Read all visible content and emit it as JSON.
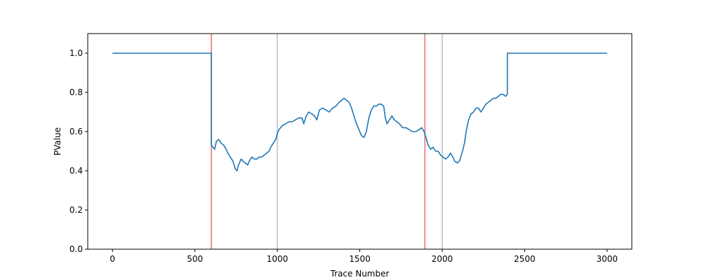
{
  "chart_data": {
    "type": "line",
    "title": "",
    "xlabel": "Trace Number",
    "ylabel": "PValue",
    "xlim": [
      -150,
      3150
    ],
    "ylim": [
      0.0,
      1.1
    ],
    "xticks": [
      0,
      500,
      1000,
      1500,
      2000,
      2500,
      3000
    ],
    "xtick_labels": [
      "0",
      "500",
      "1000",
      "1500",
      "2000",
      "2500",
      "3000"
    ],
    "yticks": [
      0.0,
      0.2,
      0.4,
      0.6,
      0.8,
      1.0
    ],
    "ytick_labels": [
      "0.0",
      "0.2",
      "0.4",
      "0.6",
      "0.8",
      "1.0"
    ],
    "grid": false,
    "vlines_gray": [
      1000,
      2000
    ],
    "vlines_red": [
      600,
      1895
    ],
    "series": [
      {
        "color": "#1f77b4",
        "points": [
          [
            0,
            1.0
          ],
          [
            600,
            1.0
          ],
          [
            600,
            0.53
          ],
          [
            610,
            0.52
          ],
          [
            620,
            0.51
          ],
          [
            630,
            0.55
          ],
          [
            645,
            0.56
          ],
          [
            660,
            0.54
          ],
          [
            675,
            0.53
          ],
          [
            690,
            0.51
          ],
          [
            700,
            0.49
          ],
          [
            715,
            0.47
          ],
          [
            730,
            0.45
          ],
          [
            745,
            0.41
          ],
          [
            755,
            0.4
          ],
          [
            765,
            0.43
          ],
          [
            780,
            0.46
          ],
          [
            790,
            0.45
          ],
          [
            805,
            0.44
          ],
          [
            820,
            0.43
          ],
          [
            830,
            0.45
          ],
          [
            845,
            0.47
          ],
          [
            860,
            0.46
          ],
          [
            875,
            0.46
          ],
          [
            890,
            0.47
          ],
          [
            905,
            0.47
          ],
          [
            920,
            0.48
          ],
          [
            935,
            0.49
          ],
          [
            950,
            0.5
          ],
          [
            960,
            0.52
          ],
          [
            975,
            0.54
          ],
          [
            990,
            0.56
          ],
          [
            1000,
            0.59
          ],
          [
            1010,
            0.61
          ],
          [
            1030,
            0.63
          ],
          [
            1050,
            0.64
          ],
          [
            1070,
            0.65
          ],
          [
            1090,
            0.65
          ],
          [
            1110,
            0.66
          ],
          [
            1130,
            0.67
          ],
          [
            1150,
            0.67
          ],
          [
            1160,
            0.64
          ],
          [
            1175,
            0.68
          ],
          [
            1190,
            0.7
          ],
          [
            1210,
            0.69
          ],
          [
            1225,
            0.68
          ],
          [
            1240,
            0.66
          ],
          [
            1255,
            0.71
          ],
          [
            1275,
            0.72
          ],
          [
            1295,
            0.71
          ],
          [
            1315,
            0.7
          ],
          [
            1335,
            0.72
          ],
          [
            1355,
            0.73
          ],
          [
            1375,
            0.75
          ],
          [
            1390,
            0.76
          ],
          [
            1405,
            0.77
          ],
          [
            1420,
            0.76
          ],
          [
            1435,
            0.75
          ],
          [
            1450,
            0.72
          ],
          [
            1465,
            0.68
          ],
          [
            1480,
            0.64
          ],
          [
            1495,
            0.61
          ],
          [
            1510,
            0.58
          ],
          [
            1525,
            0.57
          ],
          [
            1540,
            0.6
          ],
          [
            1555,
            0.67
          ],
          [
            1570,
            0.71
          ],
          [
            1585,
            0.73
          ],
          [
            1600,
            0.73
          ],
          [
            1615,
            0.74
          ],
          [
            1630,
            0.74
          ],
          [
            1645,
            0.73
          ],
          [
            1655,
            0.67
          ],
          [
            1665,
            0.64
          ],
          [
            1680,
            0.66
          ],
          [
            1695,
            0.68
          ],
          [
            1710,
            0.66
          ],
          [
            1725,
            0.65
          ],
          [
            1740,
            0.64
          ],
          [
            1760,
            0.62
          ],
          [
            1780,
            0.62
          ],
          [
            1800,
            0.61
          ],
          [
            1820,
            0.6
          ],
          [
            1840,
            0.6
          ],
          [
            1860,
            0.61
          ],
          [
            1875,
            0.62
          ],
          [
            1890,
            0.6
          ],
          [
            1905,
            0.56
          ],
          [
            1915,
            0.53
          ],
          [
            1930,
            0.51
          ],
          [
            1945,
            0.52
          ],
          [
            1960,
            0.5
          ],
          [
            1975,
            0.5
          ],
          [
            1990,
            0.48
          ],
          [
            2005,
            0.47
          ],
          [
            2020,
            0.46
          ],
          [
            2035,
            0.47
          ],
          [
            2050,
            0.49
          ],
          [
            2065,
            0.47
          ],
          [
            2075,
            0.45
          ],
          [
            2090,
            0.44
          ],
          [
            2105,
            0.45
          ],
          [
            2120,
            0.49
          ],
          [
            2135,
            0.54
          ],
          [
            2145,
            0.6
          ],
          [
            2160,
            0.66
          ],
          [
            2175,
            0.69
          ],
          [
            2190,
            0.7
          ],
          [
            2205,
            0.72
          ],
          [
            2220,
            0.72
          ],
          [
            2235,
            0.7
          ],
          [
            2250,
            0.72
          ],
          [
            2265,
            0.74
          ],
          [
            2280,
            0.75
          ],
          [
            2295,
            0.76
          ],
          [
            2310,
            0.77
          ],
          [
            2325,
            0.77
          ],
          [
            2340,
            0.78
          ],
          [
            2355,
            0.79
          ],
          [
            2370,
            0.79
          ],
          [
            2385,
            0.78
          ],
          [
            2395,
            0.79
          ],
          [
            2395,
            1.0
          ],
          [
            3000,
            1.0
          ]
        ]
      }
    ]
  }
}
